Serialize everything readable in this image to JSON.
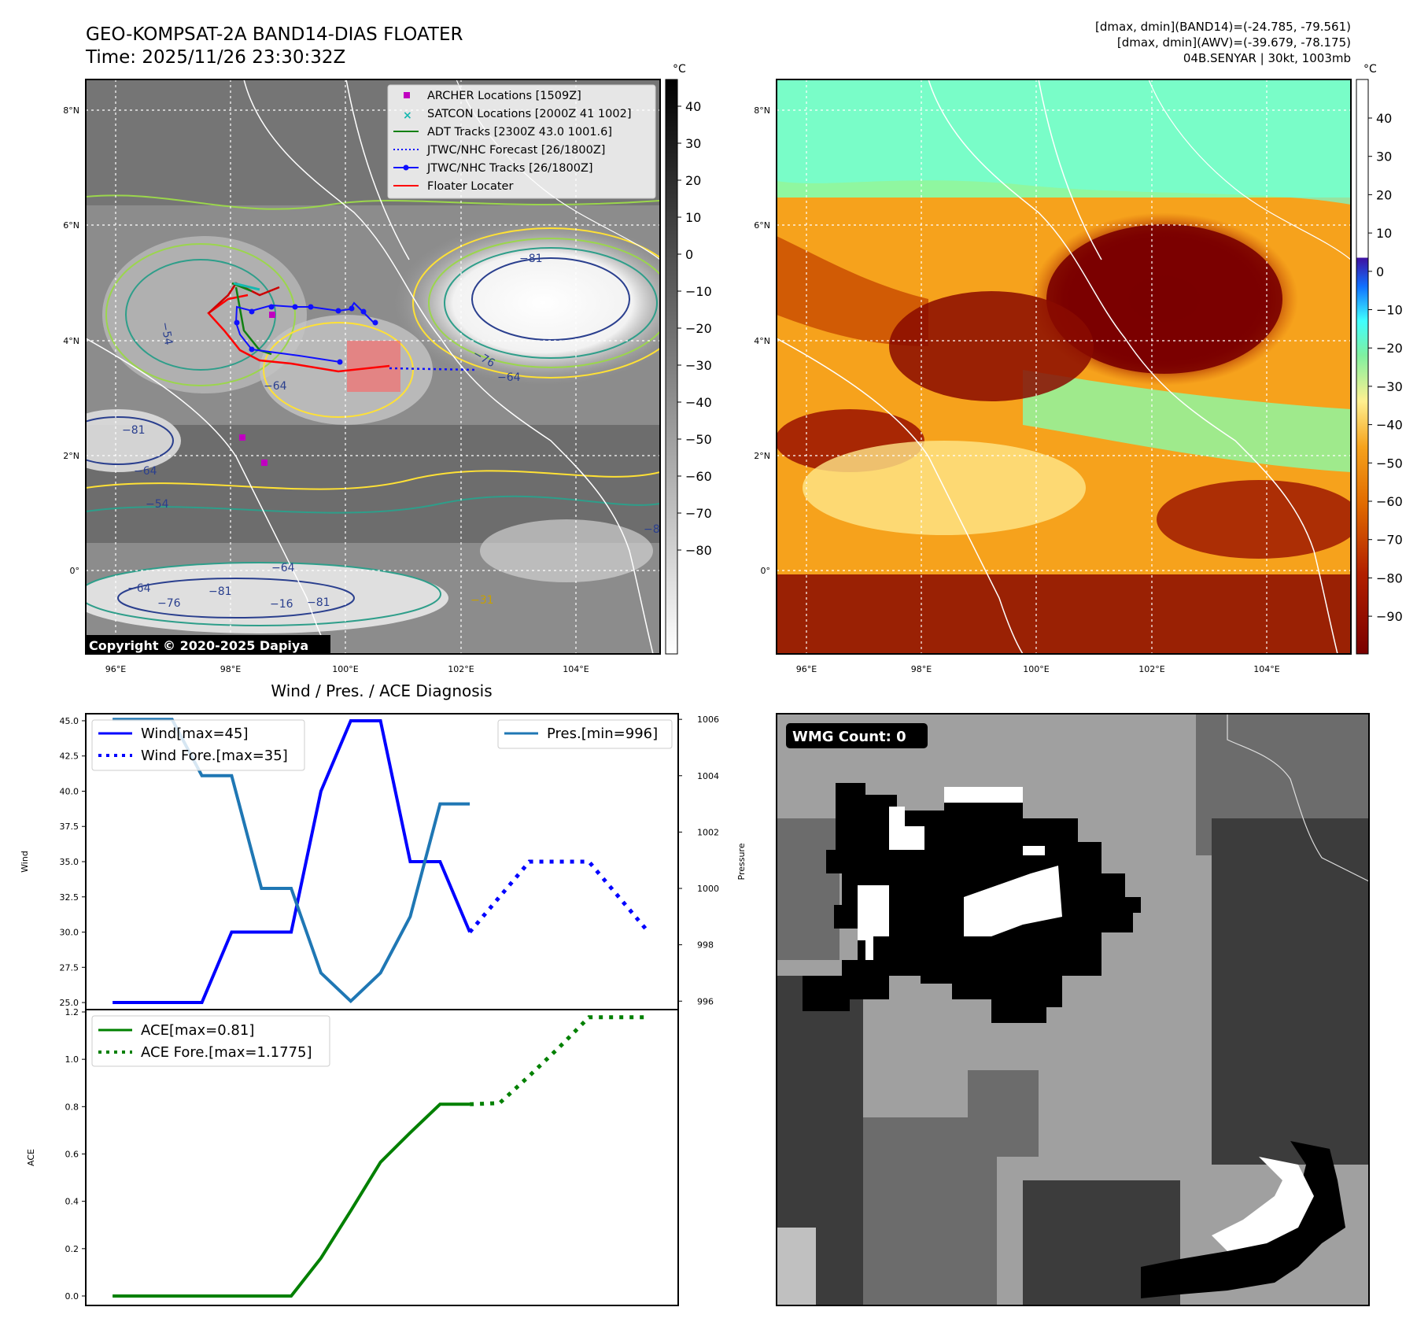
{
  "header": {
    "title_line1": "GEO-KOMPSAT-2A BAND14-DIAS FLOATER",
    "title_line2": "Time: 2025/11/26 23:30:32Z",
    "info_line1": "[dmax, dmin](BAND14)=(-24.785, -79.561)",
    "info_line2": "[dmax, dmin](AWV)=(-39.679, -78.175)",
    "info_line3": "04B.SENYAR | 30kt, 1003mb"
  },
  "map_ir": {
    "lon_ticks": [
      "96°E",
      "98°E",
      "100°E",
      "102°E",
      "104°E"
    ],
    "lat_ticks": [
      "8°N",
      "6°N",
      "4°N",
      "2°N",
      "0°"
    ],
    "colorbar_unit": "°C",
    "colorbar_ticks": [
      "40",
      "30",
      "20",
      "10",
      "0",
      "−10",
      "−20",
      "−30",
      "−40",
      "−50",
      "−60",
      "−70",
      "−80"
    ],
    "contour_labels": [
      "−81",
      "−76",
      "−64",
      "−54",
      "−64",
      "−81",
      "−64",
      "−54",
      "−64",
      "−76",
      "−81",
      "−16",
      "−81",
      "−64",
      "−31",
      "−8"
    ],
    "copyright": "Copyright © 2020-2025 Dapiya",
    "legend": [
      {
        "label": "ARCHER Locations [1509Z]",
        "color": "#c000c0"
      },
      {
        "label": "SATCON Locations [2000Z 41 1002]",
        "color": "#17b8b0"
      },
      {
        "label": "ADT Tracks [2300Z 43.0 1001.6]",
        "color": "#108010"
      },
      {
        "label": "JTWC/NHC Forecast [26/1800Z]",
        "color": "#1010ff"
      },
      {
        "label": "JTWC/NHC Tracks [26/1800Z]",
        "color": "#1010ff"
      },
      {
        "label": "Floater Locater",
        "color": "#ff0000"
      }
    ]
  },
  "map_awv": {
    "lon_ticks": [
      "96°E",
      "98°E",
      "100°E",
      "102°E",
      "104°E"
    ],
    "lat_ticks": [
      "8°N",
      "6°N",
      "4°N",
      "2°N",
      "0°"
    ],
    "colorbar_unit": "°C",
    "colorbar_ticks": [
      "40",
      "30",
      "20",
      "10",
      "0",
      "−10",
      "−20",
      "−30",
      "−40",
      "−50",
      "−60",
      "−70",
      "−80",
      "−90"
    ]
  },
  "diagnosis": {
    "title": "Wind / Pres. / ACE Diagnosis",
    "ylabel_wind": "Wind",
    "ylabel_pres": "Pressure",
    "ylabel_ace": "ACE",
    "wind_ticks": [
      "45.0",
      "42.5",
      "40.0",
      "37.5",
      "35.0",
      "32.5",
      "30.0",
      "27.5",
      "25.0"
    ],
    "pres_ticks": [
      "1006",
      "1004",
      "1002",
      "1000",
      "998",
      "996"
    ],
    "ace_ticks": [
      "1.2",
      "1.0",
      "0.8",
      "0.6",
      "0.4",
      "0.2",
      "0.0"
    ],
    "legend_wind": "Wind[max=45]",
    "legend_wind_fore": "Wind Fore.[max=35]",
    "legend_pres": "Pres.[min=996]",
    "legend_ace": "ACE[max=0.81]",
    "legend_ace_fore": "ACE Fore.[max=1.1775]"
  },
  "wmg": {
    "badge": "WMG Count: 0"
  },
  "chart_data": [
    {
      "type": "line",
      "title": "Wind / Pres. / ACE Diagnosis",
      "ylabel": "Wind",
      "ylim": [
        24.5,
        45.5
      ],
      "series": [
        {
          "name": "Wind[max=45]",
          "color": "#0000ff",
          "style": "solid",
          "x": [
            0,
            1,
            2,
            3,
            4,
            5,
            6,
            7,
            8,
            9,
            10,
            11,
            12
          ],
          "values": [
            25,
            25,
            25,
            25,
            30,
            30,
            30,
            40,
            45,
            45,
            35,
            35,
            30
          ]
        },
        {
          "name": "Wind Fore.[max=35]",
          "color": "#0000ff",
          "style": "dotted",
          "x": [
            12,
            14,
            16,
            18
          ],
          "values": [
            30,
            35,
            35,
            30
          ]
        }
      ]
    },
    {
      "type": "line",
      "ylabel": "Pressure",
      "ylim": [
        995.7,
        1006.2
      ],
      "series": [
        {
          "name": "Pres.[min=996]",
          "color": "#1f77b4",
          "style": "solid",
          "x": [
            0,
            1,
            2,
            3,
            4,
            5,
            6,
            7,
            8,
            9,
            10,
            11,
            12
          ],
          "values": [
            1006,
            1006,
            1006,
            1004,
            1004,
            1000,
            1000,
            997,
            996,
            997,
            999,
            1003,
            1003
          ]
        }
      ]
    },
    {
      "type": "line",
      "ylabel": "ACE",
      "ylim": [
        -0.04,
        1.21
      ],
      "series": [
        {
          "name": "ACE[max=0.81]",
          "color": "#008000",
          "style": "solid",
          "x": [
            0,
            1,
            2,
            3,
            4,
            5,
            6,
            7,
            8,
            9,
            10,
            11,
            12
          ],
          "values": [
            0,
            0,
            0,
            0,
            0,
            0,
            0,
            0.16,
            0.36,
            0.565,
            0.69,
            0.81,
            0.81
          ]
        },
        {
          "name": "ACE Fore.[max=1.1775]",
          "color": "#008000",
          "style": "dotted",
          "x": [
            12,
            13,
            14,
            15,
            16,
            17,
            18
          ],
          "values": [
            0.81,
            0.815,
            0.93,
            1.05,
            1.1775,
            1.1775,
            1.1775
          ]
        }
      ]
    }
  ]
}
